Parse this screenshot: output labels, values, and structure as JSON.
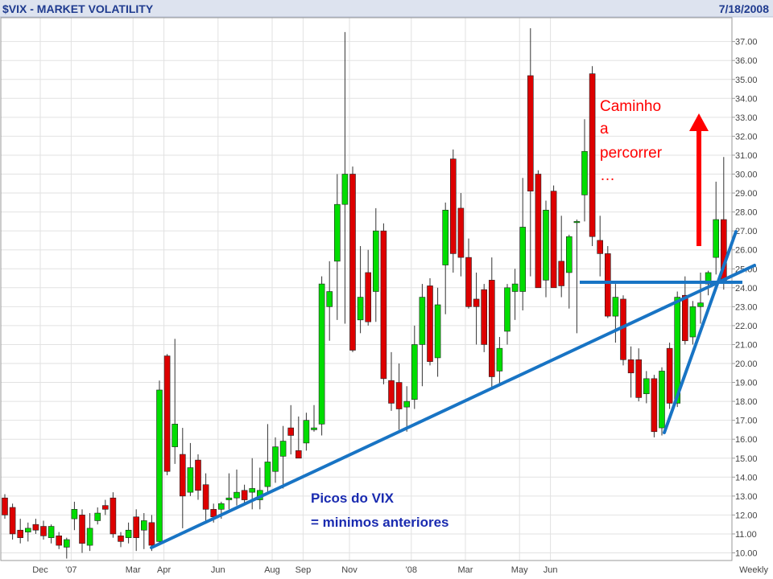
{
  "chart_data": {
    "type": "candlestick",
    "title": "$VIX - MARKET VOLATILITY",
    "date": "7/18/2008",
    "period_label": "Weekly",
    "ylim": [
      9.5,
      37.8
    ],
    "y_ticks": [
      10,
      11,
      12,
      13,
      14,
      15,
      16,
      17,
      18,
      19,
      20,
      21,
      22,
      23,
      24,
      25,
      26,
      27,
      28,
      29,
      30,
      31,
      32,
      33,
      34,
      35,
      36,
      37
    ],
    "x_labels": [
      {
        "label": "Dec",
        "index": 5
      },
      {
        "label": "'07",
        "index": 9
      },
      {
        "label": "Mar",
        "index": 17
      },
      {
        "label": "Apr",
        "index": 21
      },
      {
        "label": "Jun",
        "index": 28
      },
      {
        "label": "Aug",
        "index": 35
      },
      {
        "label": "Sep",
        "index": 39
      },
      {
        "label": "Nov",
        "index": 45
      },
      {
        "label": "'08",
        "index": 53
      },
      {
        "label": "Mar",
        "index": 60
      },
      {
        "label": "May",
        "index": 67
      },
      {
        "label": "Jun",
        "index": 71
      }
    ],
    "colors": {
      "up": "#00dd00",
      "down": "#dd0000",
      "wick": "#333333",
      "grid": "#e2e2e2",
      "header_bg": "#dde3ef",
      "trend": "#1874c4",
      "arrow": "#ff0000"
    },
    "candles": [
      {
        "o": 12.9,
        "h": 13.1,
        "l": 11.8,
        "c": 12.0
      },
      {
        "o": 12.4,
        "h": 12.6,
        "l": 10.7,
        "c": 11.0
      },
      {
        "o": 11.2,
        "h": 11.8,
        "l": 10.5,
        "c": 10.8
      },
      {
        "o": 11.1,
        "h": 11.6,
        "l": 10.6,
        "c": 11.3
      },
      {
        "o": 11.5,
        "h": 11.8,
        "l": 11.0,
        "c": 11.2
      },
      {
        "o": 11.4,
        "h": 11.7,
        "l": 10.7,
        "c": 10.9
      },
      {
        "o": 10.8,
        "h": 11.5,
        "l": 10.5,
        "c": 11.4
      },
      {
        "o": 10.9,
        "h": 11.1,
        "l": 10.2,
        "c": 10.4
      },
      {
        "o": 10.3,
        "h": 10.8,
        "l": 9.7,
        "c": 10.7
      },
      {
        "o": 11.8,
        "h": 12.7,
        "l": 11.2,
        "c": 12.3
      },
      {
        "o": 12.0,
        "h": 12.3,
        "l": 10.0,
        "c": 10.5
      },
      {
        "o": 10.4,
        "h": 12.1,
        "l": 10.1,
        "c": 11.3
      },
      {
        "o": 11.7,
        "h": 12.4,
        "l": 11.5,
        "c": 12.1
      },
      {
        "o": 12.5,
        "h": 12.8,
        "l": 12.0,
        "c": 12.3
      },
      {
        "o": 12.9,
        "h": 13.2,
        "l": 10.8,
        "c": 11.0
      },
      {
        "o": 10.9,
        "h": 11.1,
        "l": 10.3,
        "c": 10.6
      },
      {
        "o": 10.8,
        "h": 11.6,
        "l": 10.5,
        "c": 11.2
      },
      {
        "o": 11.9,
        "h": 12.3,
        "l": 10.1,
        "c": 10.8
      },
      {
        "o": 11.2,
        "h": 12.1,
        "l": 10.2,
        "c": 11.7
      },
      {
        "o": 11.6,
        "h": 12.0,
        "l": 10.1,
        "c": 10.4
      },
      {
        "o": 10.6,
        "h": 19.1,
        "l": 10.4,
        "c": 18.6
      },
      {
        "o": 20.4,
        "h": 20.5,
        "l": 14.1,
        "c": 14.3
      },
      {
        "o": 15.6,
        "h": 21.3,
        "l": 14.7,
        "c": 16.8
      },
      {
        "o": 15.2,
        "h": 16.6,
        "l": 11.3,
        "c": 13.0
      },
      {
        "o": 13.2,
        "h": 15.8,
        "l": 13.0,
        "c": 14.5
      },
      {
        "o": 14.9,
        "h": 15.2,
        "l": 12.8,
        "c": 13.3
      },
      {
        "o": 13.6,
        "h": 14.2,
        "l": 11.7,
        "c": 12.3
      },
      {
        "o": 12.3,
        "h": 12.6,
        "l": 11.6,
        "c": 11.9
      },
      {
        "o": 12.3,
        "h": 12.7,
        "l": 11.8,
        "c": 12.6
      },
      {
        "o": 12.8,
        "h": 14.2,
        "l": 12.3,
        "c": 12.9
      },
      {
        "o": 12.9,
        "h": 14.4,
        "l": 12.5,
        "c": 13.2
      },
      {
        "o": 13.3,
        "h": 13.6,
        "l": 12.5,
        "c": 12.8
      },
      {
        "o": 13.2,
        "h": 15.0,
        "l": 12.3,
        "c": 13.4
      },
      {
        "o": 12.8,
        "h": 14.5,
        "l": 12.3,
        "c": 13.3
      },
      {
        "o": 13.5,
        "h": 16.8,
        "l": 13.1,
        "c": 14.8
      },
      {
        "o": 14.3,
        "h": 16.1,
        "l": 13.7,
        "c": 15.6
      },
      {
        "o": 15.1,
        "h": 16.7,
        "l": 13.4,
        "c": 15.9
      },
      {
        "o": 16.6,
        "h": 17.8,
        "l": 15.2,
        "c": 16.2
      },
      {
        "o": 15.4,
        "h": 17.2,
        "l": 15.0,
        "c": 15.0
      },
      {
        "o": 15.8,
        "h": 17.4,
        "l": 15.4,
        "c": 17.0
      },
      {
        "o": 16.5,
        "h": 17.8,
        "l": 16.4,
        "c": 16.6
      },
      {
        "o": 16.8,
        "h": 24.6,
        "l": 16.2,
        "c": 24.2
      },
      {
        "o": 23.0,
        "h": 25.4,
        "l": 21.2,
        "c": 23.8
      },
      {
        "o": 25.4,
        "h": 30.0,
        "l": 22.3,
        "c": 28.4
      },
      {
        "o": 28.4,
        "h": 37.5,
        "l": 22.1,
        "c": 30.0
      },
      {
        "o": 30.0,
        "h": 30.4,
        "l": 20.6,
        "c": 20.7
      },
      {
        "o": 22.3,
        "h": 26.2,
        "l": 21.6,
        "c": 23.5
      },
      {
        "o": 24.8,
        "h": 26.0,
        "l": 22.0,
        "c": 22.2
      },
      {
        "o": 23.8,
        "h": 28.2,
        "l": 22.2,
        "c": 27.0
      },
      {
        "o": 27.0,
        "h": 27.4,
        "l": 18.9,
        "c": 19.2
      },
      {
        "o": 19.1,
        "h": 20.6,
        "l": 17.5,
        "c": 17.9
      },
      {
        "o": 19.0,
        "h": 20.0,
        "l": 16.5,
        "c": 17.6
      },
      {
        "o": 17.7,
        "h": 18.8,
        "l": 16.4,
        "c": 18.0
      },
      {
        "o": 18.1,
        "h": 22.0,
        "l": 17.6,
        "c": 21.0
      },
      {
        "o": 21.0,
        "h": 24.2,
        "l": 18.8,
        "c": 23.5
      },
      {
        "o": 24.1,
        "h": 24.5,
        "l": 19.9,
        "c": 20.1
      },
      {
        "o": 20.3,
        "h": 24.0,
        "l": 19.3,
        "c": 23.1
      },
      {
        "o": 25.2,
        "h": 28.5,
        "l": 22.6,
        "c": 28.1
      },
      {
        "o": 30.8,
        "h": 31.3,
        "l": 24.8,
        "c": 25.8
      },
      {
        "o": 28.2,
        "h": 29.0,
        "l": 24.6,
        "c": 25.6
      },
      {
        "o": 25.6,
        "h": 26.6,
        "l": 22.9,
        "c": 23.0
      },
      {
        "o": 23.4,
        "h": 24.8,
        "l": 21.0,
        "c": 23.0
      },
      {
        "o": 23.9,
        "h": 24.2,
        "l": 20.6,
        "c": 21.0
      },
      {
        "o": 24.4,
        "h": 25.6,
        "l": 18.6,
        "c": 19.3
      },
      {
        "o": 19.6,
        "h": 21.4,
        "l": 18.9,
        "c": 20.8
      },
      {
        "o": 21.7,
        "h": 24.2,
        "l": 21.0,
        "c": 24.0
      },
      {
        "o": 23.8,
        "h": 25.0,
        "l": 22.3,
        "c": 24.2
      },
      {
        "o": 23.8,
        "h": 29.8,
        "l": 22.8,
        "c": 27.2
      },
      {
        "o": 35.2,
        "h": 37.7,
        "l": 24.6,
        "c": 29.1
      },
      {
        "o": 30.0,
        "h": 30.2,
        "l": 24.1,
        "c": 24.0
      },
      {
        "o": 24.4,
        "h": 28.6,
        "l": 23.5,
        "c": 28.1
      },
      {
        "o": 29.1,
        "h": 29.4,
        "l": 24.0,
        "c": 24.0
      },
      {
        "o": 25.4,
        "h": 27.8,
        "l": 23.5,
        "c": 24.1
      },
      {
        "o": 24.8,
        "h": 26.8,
        "l": 22.9,
        "c": 26.7
      },
      {
        "o": 27.5,
        "h": 27.6,
        "l": 21.6,
        "c": 27.5
      },
      {
        "o": 28.9,
        "h": 32.9,
        "l": 27.5,
        "c": 31.2
      },
      {
        "o": 35.3,
        "h": 35.7,
        "l": 26.2,
        "c": 26.7
      },
      {
        "o": 26.5,
        "h": 27.8,
        "l": 24.6,
        "c": 25.8
      },
      {
        "o": 25.8,
        "h": 26.2,
        "l": 22.4,
        "c": 22.5
      },
      {
        "o": 22.5,
        "h": 24.2,
        "l": 21.1,
        "c": 23.5
      },
      {
        "o": 23.4,
        "h": 23.6,
        "l": 19.9,
        "c": 20.2
      },
      {
        "o": 20.2,
        "h": 20.9,
        "l": 18.2,
        "c": 19.5
      },
      {
        "o": 20.2,
        "h": 20.8,
        "l": 18.0,
        "c": 18.2
      },
      {
        "o": 18.4,
        "h": 19.6,
        "l": 17.9,
        "c": 19.2
      },
      {
        "o": 19.2,
        "h": 19.4,
        "l": 16.1,
        "c": 16.4
      },
      {
        "o": 16.6,
        "h": 19.8,
        "l": 16.2,
        "c": 19.6
      },
      {
        "o": 20.8,
        "h": 21.1,
        "l": 17.6,
        "c": 17.9
      },
      {
        "o": 17.9,
        "h": 23.8,
        "l": 17.7,
        "c": 23.5
      },
      {
        "o": 23.6,
        "h": 24.6,
        "l": 21.0,
        "c": 21.2
      },
      {
        "o": 21.4,
        "h": 23.3,
        "l": 21.0,
        "c": 23.0
      },
      {
        "o": 23.0,
        "h": 24.8,
        "l": 22.1,
        "c": 23.2
      },
      {
        "o": 24.2,
        "h": 24.9,
        "l": 23.6,
        "c": 24.8
      },
      {
        "o": 25.6,
        "h": 29.6,
        "l": 24.7,
        "c": 27.6
      },
      {
        "o": 27.6,
        "h": 30.9,
        "l": 23.9,
        "c": 24.3
      }
    ],
    "annotations": {
      "path_text": [
        "Caminho",
        "a",
        "percorrer",
        "…"
      ],
      "note_line1": "Picos do VIX",
      "note_line2": "= minimos anteriores"
    }
  }
}
